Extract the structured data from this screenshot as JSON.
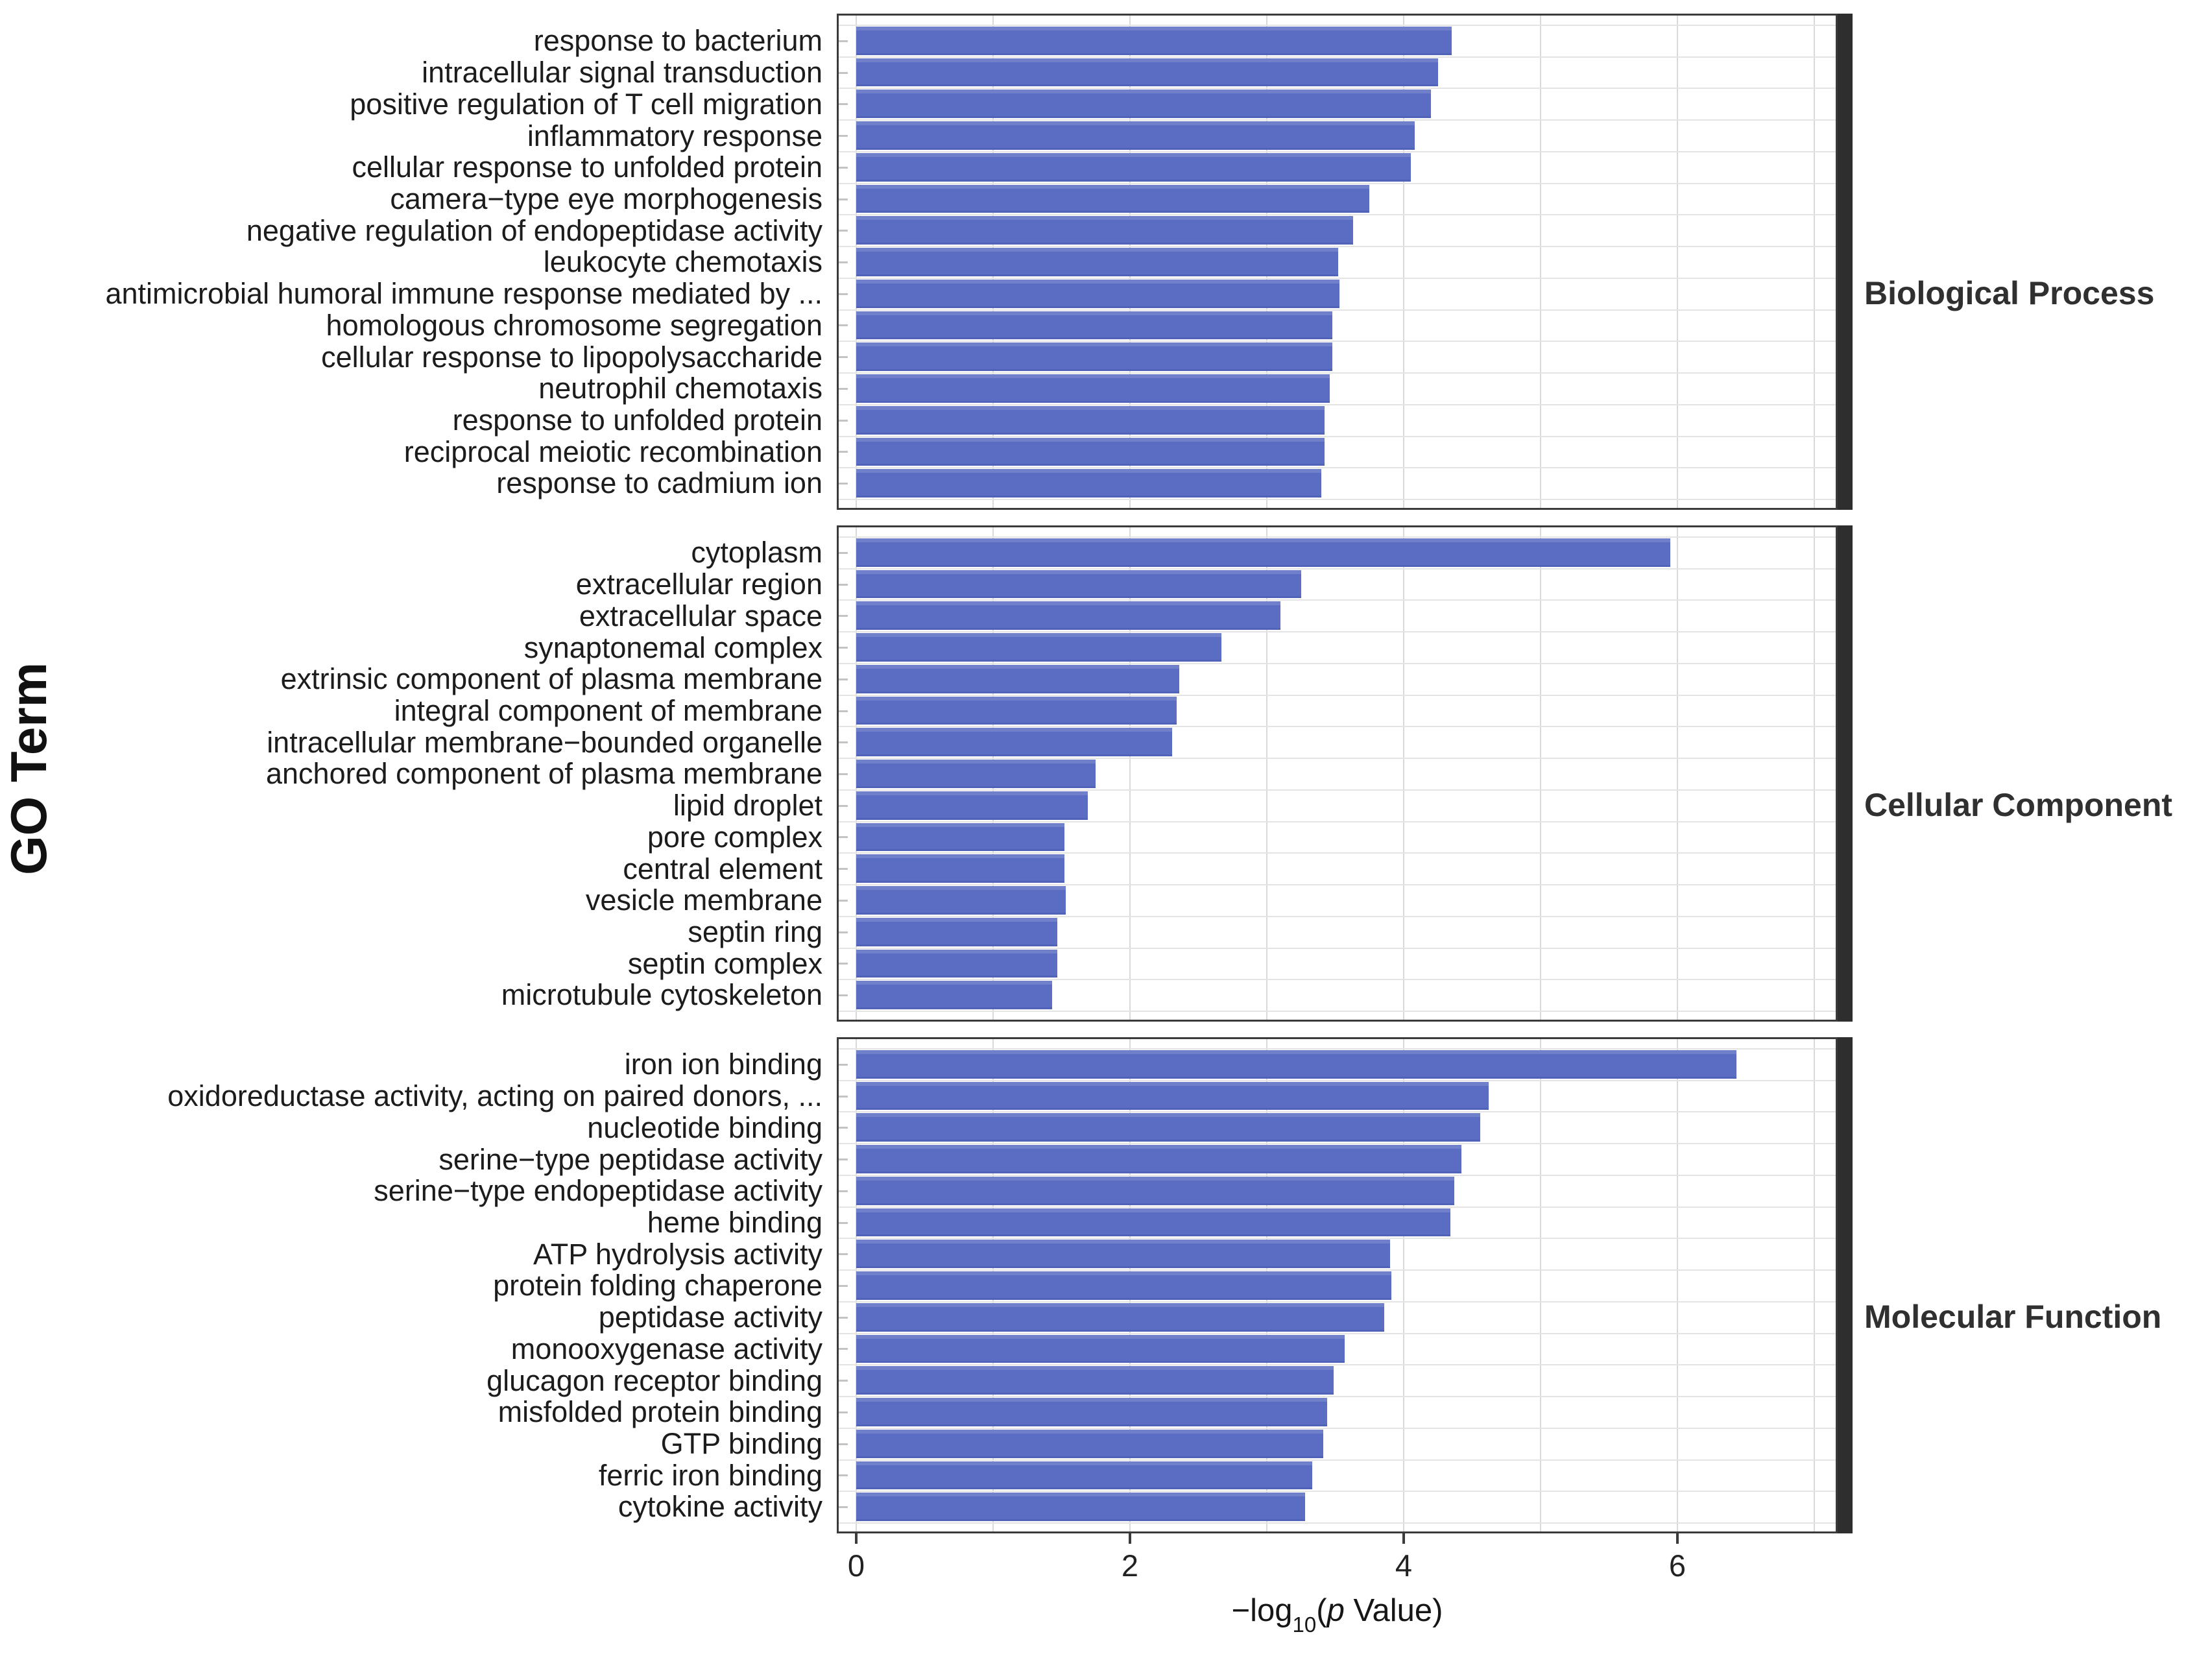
{
  "y_axis_title": "GO Term",
  "x_axis": {
    "title_parts": {
      "minus_log": "−log",
      "sub": "10",
      "open": "(",
      "p_italic": "p",
      "close": " Value)"
    },
    "tick_labels": [
      "0",
      "2",
      "4",
      "6"
    ]
  },
  "colors": {
    "bar": "#5b6cc3",
    "bar_top_highlight": "#7180cb",
    "panel_border": "#3b3b3b",
    "facet_strip": "#2e2e2e",
    "major_gridline": "#d9d9d9",
    "row_gridline": "#e4e4e4",
    "facet_label_text": "#303030"
  },
  "chart_data": {
    "type": "bar",
    "orientation": "horizontal",
    "title": "",
    "xlabel": "-log10(p Value)",
    "ylabel": "GO Term",
    "xlim": [
      0,
      7.2
    ],
    "xticks": [
      0,
      2,
      4,
      6
    ],
    "grid": true,
    "legend_position": "none",
    "bar_color": "#5b6cc3",
    "panels": [
      {
        "name": "Biological Process",
        "categories": [
          "response to bacterium",
          "intracellular signal transduction",
          "positive regulation of T cell migration",
          "inflammatory response",
          "cellular response to unfolded protein",
          "camera−type eye morphogenesis",
          "negative regulation of endopeptidase activity",
          "leukocyte chemotaxis",
          "antimicrobial humoral immune response mediated by ...",
          "homologous chromosome segregation",
          "cellular response to lipopolysaccharide",
          "neutrophil chemotaxis",
          "response to unfolded protein",
          "reciprocal meiotic recombination",
          "response to cadmium ion"
        ],
        "values": [
          4.35,
          4.25,
          4.2,
          4.08,
          4.05,
          3.75,
          3.63,
          3.52,
          3.53,
          3.48,
          3.48,
          3.46,
          3.42,
          3.42,
          3.4
        ]
      },
      {
        "name": "Cellular Component",
        "categories": [
          "cytoplasm",
          "extracellular region",
          "extracellular space",
          "synaptonemal complex",
          "extrinsic component of plasma membrane",
          "integral component of membrane",
          "intracellular membrane−bounded organelle",
          "anchored component of plasma membrane",
          "lipid droplet",
          "pore complex",
          "central element",
          "vesicle membrane",
          "septin ring",
          "septin complex",
          "microtubule cytoskeleton"
        ],
        "values": [
          5.95,
          3.25,
          3.1,
          2.67,
          2.36,
          2.34,
          2.31,
          1.75,
          1.69,
          1.52,
          1.52,
          1.53,
          1.47,
          1.47,
          1.43
        ]
      },
      {
        "name": "Molecular Function",
        "categories": [
          "iron ion binding",
          "oxidoreductase activity, acting on paired donors, ...",
          "nucleotide binding",
          "serine−type peptidase activity",
          "serine−type endopeptidase activity",
          "heme binding",
          "ATP hydrolysis activity",
          "protein folding chaperone",
          "peptidase activity",
          "monooxygenase activity",
          "glucagon receptor binding",
          "misfolded protein binding",
          "GTP binding",
          "ferric iron binding",
          "cytokine activity"
        ],
        "values": [
          6.43,
          4.62,
          4.56,
          4.42,
          4.37,
          4.34,
          3.9,
          3.91,
          3.86,
          3.57,
          3.49,
          3.44,
          3.41,
          3.33,
          3.28
        ]
      }
    ]
  }
}
